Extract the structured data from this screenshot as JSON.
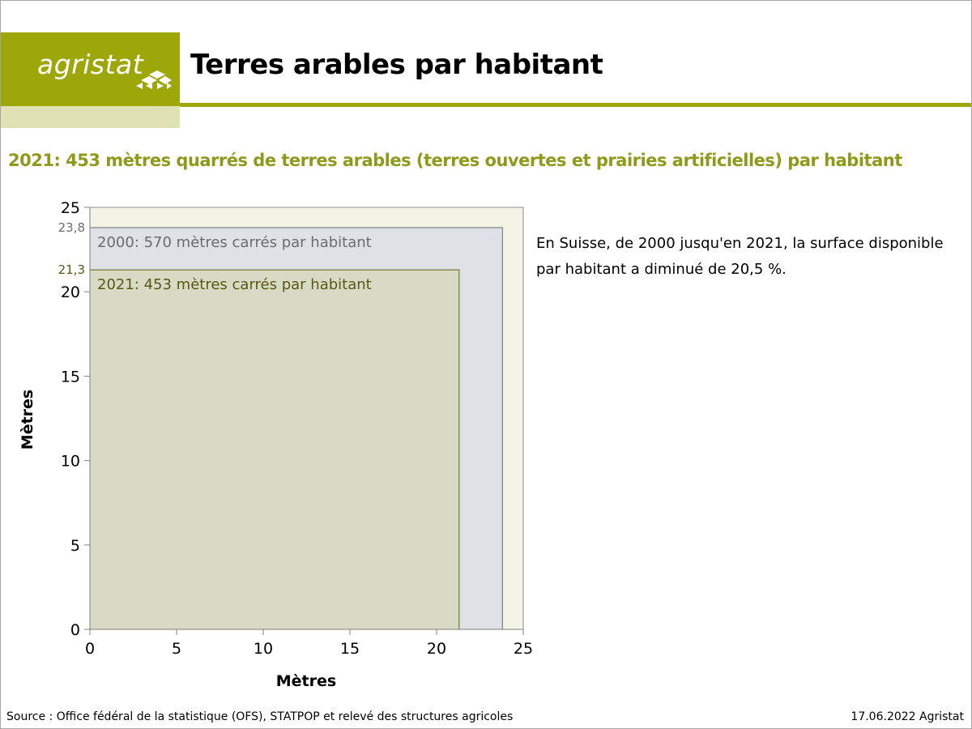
{
  "header": {
    "logo_text": "agristat",
    "title": "Terres arables par habitant"
  },
  "subtitle": "2021: 453 mètres quarrés de terres arables (terres ouvertes et prairies artificielles) par habitant",
  "note": {
    "line1": "En Suisse, de 2000 jusqu'en 2021, la surface disponible",
    "line2": "par habitant a diminué de 20,5 %."
  },
  "footer": {
    "source": "Source : Office fédéral de la statistique (OFS), STATPOP et relevé des structures agricoles",
    "date_credit": "17.06.2022 Agristat"
  },
  "colors": {
    "brand": "#9ea70a",
    "brand_light": "#e0e2b4",
    "subtitle": "#8f9a1a",
    "plot_bg": "#f3f4e6",
    "square_2000_fill": "#dee1e5",
    "square_2000_stroke": "#6b6b6b",
    "square_2021_fill": "#d9dac5",
    "square_2021_stroke": "#5f6110",
    "label_2000": "#6b6b6b",
    "label_2021": "#555a10"
  },
  "chart_data": {
    "type": "area",
    "xlabel": "Mètres",
    "ylabel": "Mètres",
    "xlim": [
      0,
      25
    ],
    "ylim": [
      0,
      25
    ],
    "xticks": [
      "0",
      "5",
      "10",
      "15",
      "20",
      "25"
    ],
    "yticks": [
      "0",
      "5",
      "10",
      "15",
      "20",
      "25"
    ],
    "grid": false,
    "series": [
      {
        "name": "2000: 570 mètres carrés par habitant",
        "side": 23.8,
        "side_label": "23,8",
        "area": 570
      },
      {
        "name": "2021: 453 mètres carrés par habitant",
        "side": 21.3,
        "side_label": "21,3",
        "area": 453
      }
    ]
  }
}
